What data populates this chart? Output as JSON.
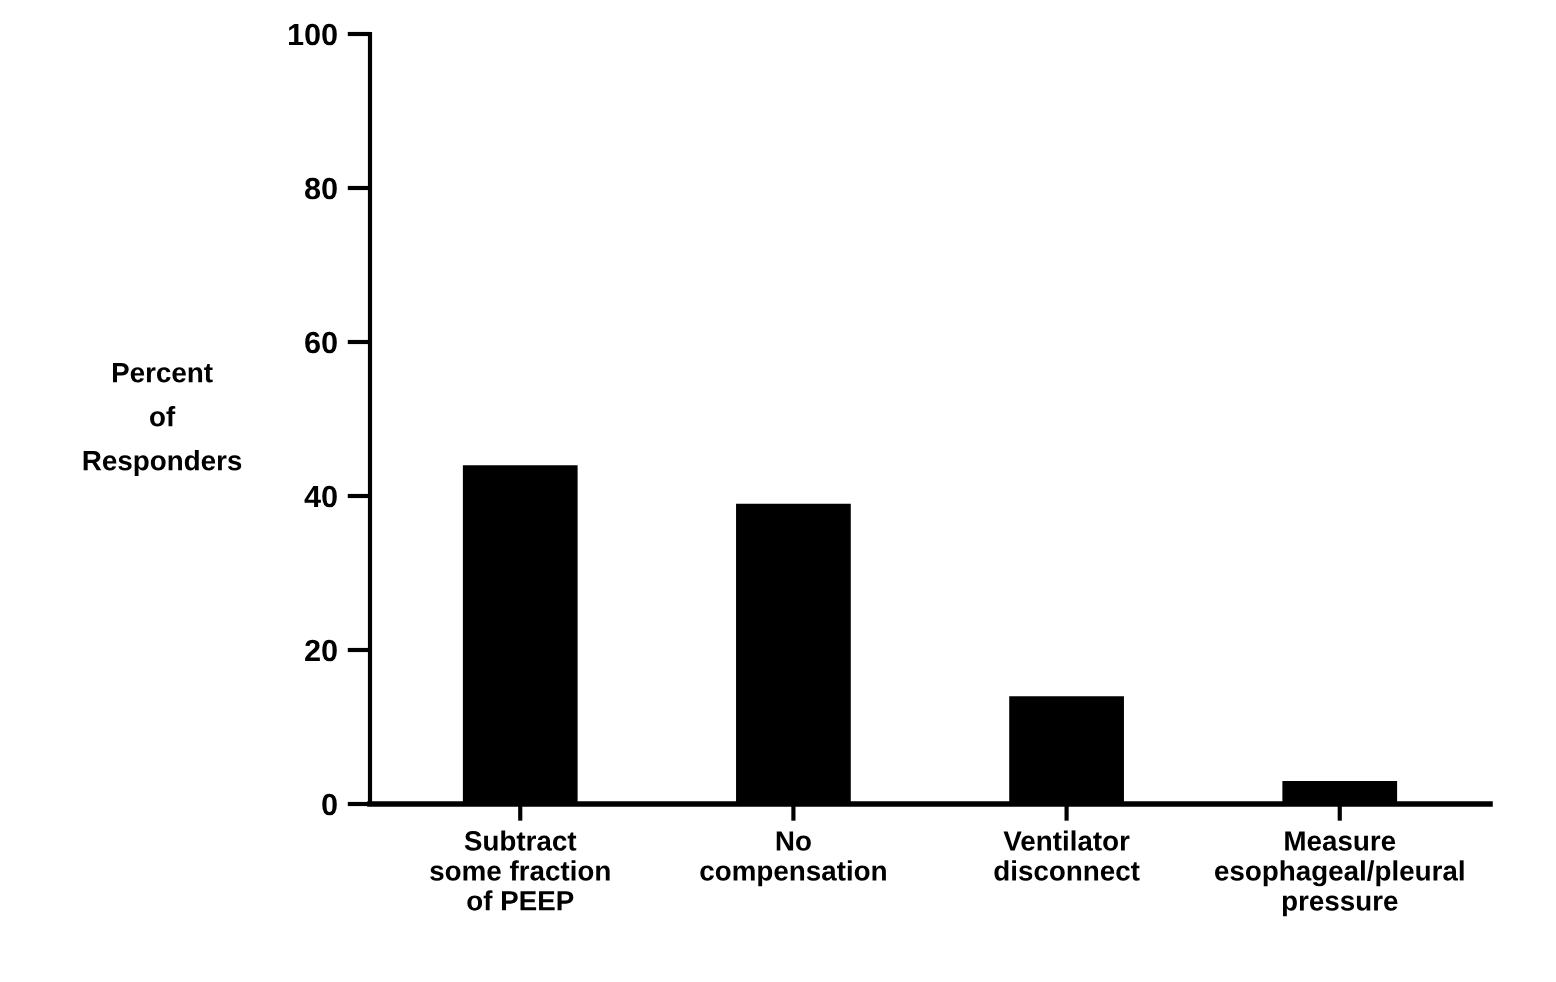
{
  "chart_data": {
    "type": "bar",
    "ylabel": "Percent\nof\nResponders",
    "categories": [
      "Subtract\nsome fraction\nof PEEP",
      "No\ncompensation",
      "Ventilator\ndisconnect",
      "Measure\nesophageal/pleural\npressure"
    ],
    "values": [
      44,
      39,
      14,
      3
    ],
    "color": "#000000",
    "ylim": [
      0,
      100
    ],
    "yticks": [
      0,
      20,
      40,
      60,
      80,
      100
    ],
    "grid": false
  }
}
